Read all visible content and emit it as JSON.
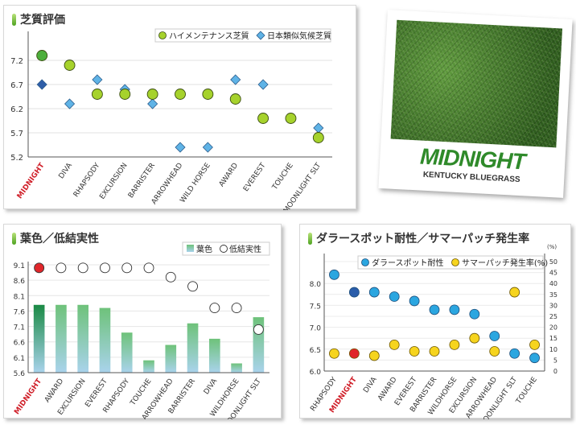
{
  "chart_data": [
    {
      "type": "scatter",
      "title": "芝質評価",
      "categories": [
        "MIDNIGHT",
        "DIVA",
        "RHAPSODY",
        "EXCURSION",
        "BARRISTER",
        "ARROWHEAD",
        "WILD HORSE",
        "AWARD",
        "EVEREST",
        "TOUCHE",
        "MOONLIGHT SLT"
      ],
      "highlight": "MIDNIGHT",
      "ylim": [
        5.2,
        7.7
      ],
      "yticks": [
        "7.2",
        "6.7",
        "6.2",
        "5.7",
        "5.2"
      ],
      "legend_position": "top-right",
      "series": [
        {
          "name": "ハイメンテナンス芝質",
          "marker": "circle",
          "color": "#a6d22c",
          "highlight_color": "#4daf3c",
          "values": [
            7.3,
            7.1,
            6.5,
            6.5,
            6.5,
            6.5,
            6.5,
            6.4,
            6.0,
            6.0,
            5.6
          ]
        },
        {
          "name": "日本類似気候芝質",
          "marker": "diamond",
          "color": "#5fb3e6",
          "highlight_color": "#2e5da8",
          "values": [
            6.7,
            6.3,
            6.8,
            6.6,
            6.3,
            5.4,
            5.4,
            6.8,
            6.7,
            6.0,
            5.8
          ]
        }
      ]
    },
    {
      "type": "bar",
      "title": "葉色／低結実性",
      "categories": [
        "MIDNIGHT",
        "AWARD",
        "EXCURSION",
        "EVEREST",
        "RHAPSODY",
        "TOUCHE",
        "ARROWHEAD",
        "BARRISTER",
        "DIVA",
        "WILDHORSE",
        "MOONLIGHT SLT"
      ],
      "highlight": "MIDNIGHT",
      "ylim": [
        5.6,
        9.1
      ],
      "yticks": [
        "9.1",
        "8.6",
        "8.1",
        "7.6",
        "7.1",
        "6.6",
        "6.1",
        "5.6"
      ],
      "legend_position": "top-right",
      "series": [
        {
          "name": "葉色",
          "kind": "bar",
          "values": [
            7.8,
            7.8,
            7.8,
            7.7,
            6.9,
            6.0,
            6.5,
            7.2,
            6.7,
            5.9,
            7.4
          ]
        },
        {
          "name": "低結実性",
          "kind": "circle",
          "values": [
            9.0,
            9.0,
            9.0,
            9.0,
            9.0,
            9.0,
            8.7,
            8.4,
            7.7,
            7.7,
            7.0
          ]
        }
      ]
    },
    {
      "type": "scatter",
      "title": "ダラースポット耐性／サマーパッチ発生率",
      "categories": [
        "RHAPSODY",
        "MIDNIGHT",
        "DIVA",
        "AWARD",
        "EVEREST",
        "BARRISTER",
        "WILDHORSE",
        "EXCURSION",
        "ARROWHEAD",
        "MOONLIGHT SLT",
        "TOUCHE"
      ],
      "highlight": "MIDNIGHT",
      "ylim": [
        6.0,
        8.5
      ],
      "yticks": [
        "8.0",
        "7.5",
        "7.0",
        "6.5",
        "6.0"
      ],
      "y2lim": [
        0,
        50
      ],
      "y2ticks": [
        "50",
        "45",
        "40",
        "35",
        "30",
        "25",
        "20",
        "15",
        "10",
        "5",
        "0"
      ],
      "y2unit": "(%)",
      "legend_position": "top-right",
      "series": [
        {
          "name": "ダラースポット耐性",
          "axis": "left",
          "color": "#2ba6e0",
          "highlight_color": "#2a5daa",
          "values": [
            8.2,
            7.8,
            7.8,
            7.7,
            7.6,
            7.4,
            7.4,
            7.3,
            6.8,
            6.4,
            6.3
          ]
        },
        {
          "name": "サマーパッチ発生率(%)",
          "axis": "right",
          "color": "#f6d41e",
          "highlight_color": "#e0262a",
          "values": [
            8,
            8,
            7,
            12,
            9,
            9,
            12,
            15,
            9,
            36,
            12
          ]
        }
      ]
    }
  ],
  "photo": {
    "brand": "MIDNIGHT",
    "subtitle": "KENTUCKY BLUEGRASS",
    "brand_color": "#2f8a2a"
  }
}
